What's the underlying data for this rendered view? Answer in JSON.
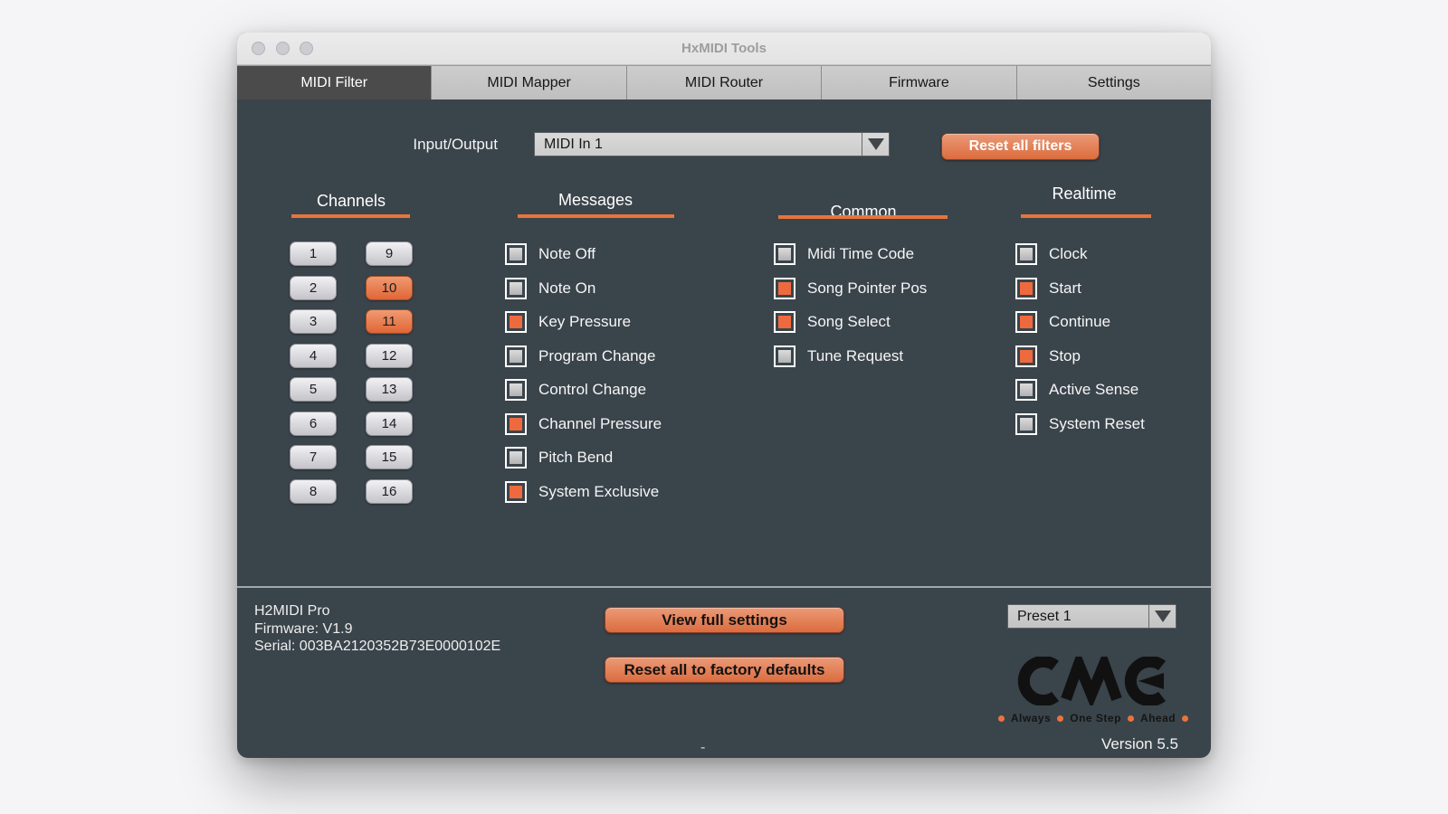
{
  "window": {
    "title": "HxMIDI Tools"
  },
  "tabs": {
    "items": [
      {
        "label": "MIDI Filter",
        "active": true
      },
      {
        "label": "MIDI Mapper",
        "active": false
      },
      {
        "label": "MIDI Router",
        "active": false
      },
      {
        "label": "Firmware",
        "active": false
      },
      {
        "label": "Settings",
        "active": false
      }
    ]
  },
  "io": {
    "label": "Input/Output",
    "selected": "MIDI In 1",
    "reset_button": "Reset all filters"
  },
  "channels": {
    "header": "Channels",
    "columns": [
      [
        1,
        2,
        3,
        4,
        5,
        6,
        7,
        8
      ],
      [
        9,
        10,
        11,
        12,
        13,
        14,
        15,
        16
      ]
    ],
    "active": [
      10,
      11
    ]
  },
  "messages": {
    "header": "Messages",
    "items": [
      {
        "label": "Note Off",
        "checked": false
      },
      {
        "label": "Note On",
        "checked": false
      },
      {
        "label": "Key Pressure",
        "checked": true
      },
      {
        "label": "Program Change",
        "checked": false
      },
      {
        "label": "Control Change",
        "checked": false
      },
      {
        "label": "Channel Pressure",
        "checked": true
      },
      {
        "label": "Pitch Bend",
        "checked": false
      },
      {
        "label": "System Exclusive",
        "checked": true
      }
    ]
  },
  "common": {
    "header": "Common",
    "items": [
      {
        "label": "Midi Time Code",
        "checked": false
      },
      {
        "label": "Song Pointer Pos",
        "checked": true
      },
      {
        "label": "Song Select",
        "checked": true
      },
      {
        "label": "Tune Request",
        "checked": false
      }
    ]
  },
  "realtime": {
    "header": "Realtime",
    "items": [
      {
        "label": "Clock",
        "checked": false
      },
      {
        "label": "Start",
        "checked": true
      },
      {
        "label": "Continue",
        "checked": true
      },
      {
        "label": "Stop",
        "checked": true
      },
      {
        "label": "Active Sense",
        "checked": false
      },
      {
        "label": "System Reset",
        "checked": false
      }
    ]
  },
  "footer": {
    "device": "H2MIDI Pro",
    "firmware": "Firmware: V1.9",
    "serial": "Serial: 003BA2120352B73E0000102E",
    "view_settings_button": "View full settings",
    "factory_reset_button": "Reset all to factory defaults",
    "preset": "Preset 1",
    "logo_text": "CME",
    "tagline_words": [
      "Always",
      "One Step",
      "Ahead"
    ],
    "version": "Version 5.5",
    "dash": "-"
  },
  "colors": {
    "accent_orange": "#e8743c",
    "checkbox_orange": "#ee6a3e",
    "panel_background": "#3a444b",
    "active_tab": "#4b4b4b",
    "logo_black": "#111111"
  }
}
